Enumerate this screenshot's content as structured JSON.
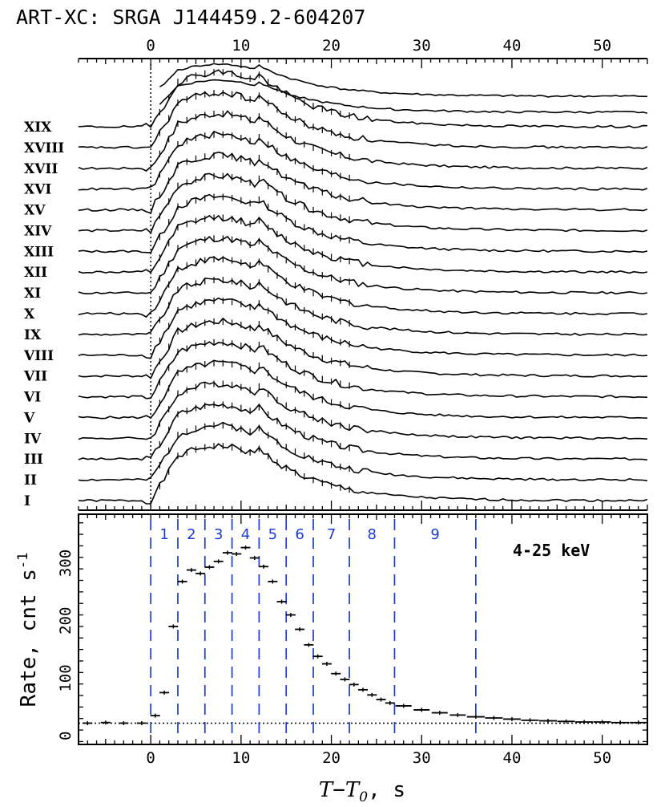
{
  "title": "ART-XC: SRGA J144459.2-604207",
  "chart_data": [
    {
      "type": "line",
      "panel": "top",
      "description_axis": "stacked light curves of 19 bursts, offset vertically",
      "x_ticks": [
        "0",
        "10",
        "20",
        "30",
        "40",
        "50"
      ],
      "xlim": [
        -8,
        55
      ],
      "bursts": [
        {
          "label": "XIX",
          "seed": 19
        },
        {
          "label": "XVIII",
          "seed": 18
        },
        {
          "label": "XVII",
          "seed": 17
        },
        {
          "label": "XVI",
          "seed": 16
        },
        {
          "label": "XV",
          "seed": 15
        },
        {
          "label": "XIV",
          "seed": 14
        },
        {
          "label": "XIII",
          "seed": 13
        },
        {
          "label": "XII",
          "seed": 12
        },
        {
          "label": "XI",
          "seed": 11
        },
        {
          "label": "X",
          "seed": 10
        },
        {
          "label": "IX",
          "seed": 9
        },
        {
          "label": "VIII",
          "seed": 8
        },
        {
          "label": "VII",
          "seed": 7
        },
        {
          "label": "VI",
          "seed": 6
        },
        {
          "label": "V",
          "seed": 5
        },
        {
          "label": "IV",
          "seed": 4
        },
        {
          "label": "III",
          "seed": 3
        },
        {
          "label": "II",
          "seed": 2
        },
        {
          "label": "I",
          "seed": 1
        }
      ],
      "burst_onset_line": 0
    },
    {
      "type": "scatter",
      "panel": "bottom",
      "energy_label": "4-25 keV",
      "xlabel_main": "T",
      "xlabel_sub": "0",
      "xlabel_rest": ", s",
      "xlabel_T2": "T",
      "ylabel": "Rate, cnt s",
      "ylabel_sup": "-1",
      "xlim": [
        -8,
        55
      ],
      "ylim": [
        -15,
        385
      ],
      "x_ticks": [
        "0",
        "10",
        "20",
        "30",
        "40",
        "50"
      ],
      "y_ticks": [
        "0",
        "100",
        "200",
        "300"
      ],
      "y_tick_values": [
        0,
        100,
        200,
        300
      ],
      "baseline": 22,
      "segment_boundaries": [
        0,
        3,
        6,
        9,
        12,
        15,
        18,
        22,
        27,
        36
      ],
      "segment_labels": [
        "1",
        "2",
        "3",
        "4",
        "5",
        "6",
        "7",
        "8",
        "9"
      ],
      "points": [
        {
          "x": -7,
          "y": 22
        },
        {
          "x": -5,
          "y": 23
        },
        {
          "x": -3,
          "y": 22
        },
        {
          "x": -1,
          "y": 22
        },
        {
          "x": 0.5,
          "y": 35
        },
        {
          "x": 1.5,
          "y": 75
        },
        {
          "x": 2.5,
          "y": 190
        },
        {
          "x": 3.5,
          "y": 268
        },
        {
          "x": 4.5,
          "y": 288
        },
        {
          "x": 5.5,
          "y": 282
        },
        {
          "x": 6.5,
          "y": 293
        },
        {
          "x": 7.5,
          "y": 303
        },
        {
          "x": 8.5,
          "y": 318
        },
        {
          "x": 9.5,
          "y": 316
        },
        {
          "x": 10.5,
          "y": 327
        },
        {
          "x": 11.5,
          "y": 309
        },
        {
          "x": 12.5,
          "y": 294
        },
        {
          "x": 13.5,
          "y": 268
        },
        {
          "x": 14.5,
          "y": 233
        },
        {
          "x": 15.5,
          "y": 210
        },
        {
          "x": 16.5,
          "y": 185
        },
        {
          "x": 17.5,
          "y": 158
        },
        {
          "x": 18.5,
          "y": 138
        },
        {
          "x": 19.5,
          "y": 125
        },
        {
          "x": 20.5,
          "y": 108
        },
        {
          "x": 21.5,
          "y": 98
        },
        {
          "x": 22.5,
          "y": 89
        },
        {
          "x": 23.5,
          "y": 80
        },
        {
          "x": 24.5,
          "y": 71
        },
        {
          "x": 25.5,
          "y": 63
        },
        {
          "x": 26.5,
          "y": 57
        },
        {
          "x": 28,
          "y": 52
        },
        {
          "x": 30,
          "y": 45
        },
        {
          "x": 32,
          "y": 40
        },
        {
          "x": 34,
          "y": 36
        },
        {
          "x": 36,
          "y": 33
        },
        {
          "x": 38,
          "y": 31
        },
        {
          "x": 40,
          "y": 29
        },
        {
          "x": 42,
          "y": 27
        },
        {
          "x": 44,
          "y": 26
        },
        {
          "x": 46,
          "y": 25
        },
        {
          "x": 48,
          "y": 24
        },
        {
          "x": 50,
          "y": 24
        },
        {
          "x": 52,
          "y": 23
        },
        {
          "x": 54,
          "y": 23
        }
      ]
    }
  ]
}
